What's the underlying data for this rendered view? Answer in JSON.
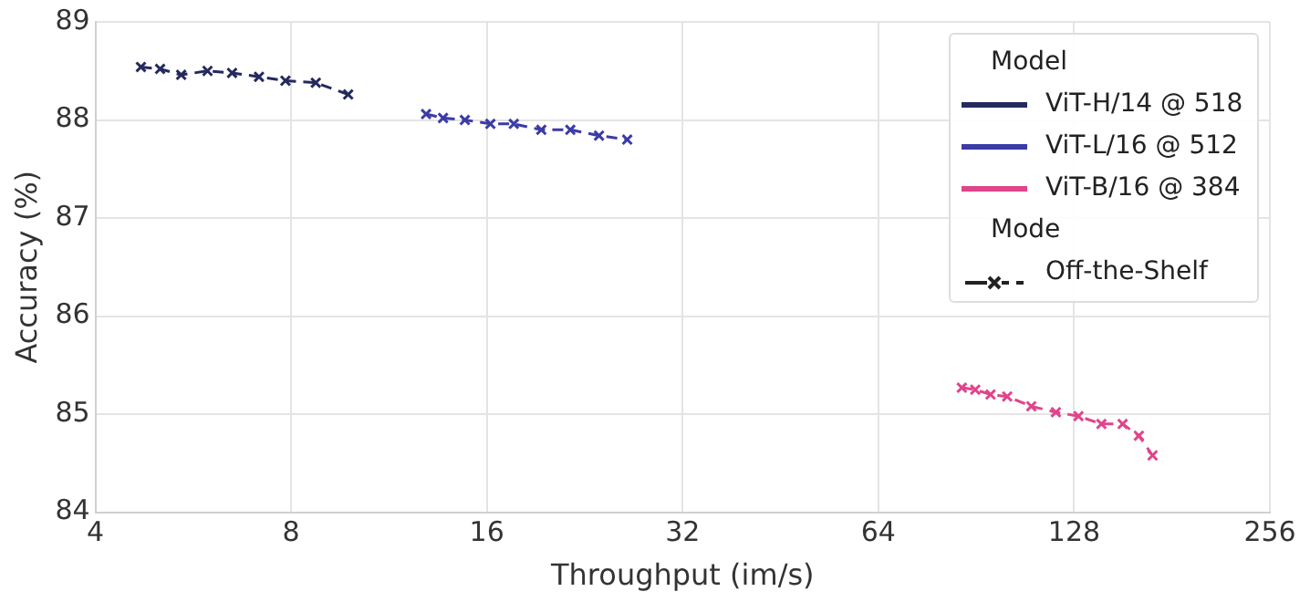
{
  "chart_data": {
    "type": "line",
    "xlabel": "Throughput (im/s)",
    "ylabel": "Accuracy (%)",
    "legend_title": "Model",
    "log": "x",
    "xlim": [
      4,
      256
    ],
    "xticks": [
      4,
      8,
      16,
      32,
      64,
      128,
      256
    ],
    "ylim": [
      84,
      89
    ],
    "yticks": [
      84,
      85,
      86,
      87,
      88,
      89
    ],
    "grid": true,
    "legend": "top right",
    "marker": "cross",
    "line_style": "dashed",
    "series": [
      {
        "name": "ViT-H/14 @ 518",
        "color": "#24295e",
        "x": [
          4.7,
          5.03,
          5.42,
          5.95,
          6.49,
          7.14,
          7.84,
          8.73,
          9.79
        ],
        "values": [
          88.54,
          88.52,
          88.46,
          88.5,
          88.48,
          88.44,
          88.4,
          88.38,
          88.26
        ]
      },
      {
        "name": "ViT-L/16 @ 512",
        "color": "#3b3ba8",
        "x": [
          12.9,
          13.7,
          14.8,
          16.2,
          17.6,
          19.4,
          21.5,
          23.8,
          26.3
        ],
        "values": [
          88.06,
          88.02,
          88.0,
          87.96,
          87.96,
          87.9,
          87.9,
          87.84,
          87.8
        ]
      },
      {
        "name": "ViT-B/16 @ 384",
        "color": "#e0448a",
        "x": [
          86,
          90.2,
          95.2,
          101,
          110,
          120,
          130,
          141,
          152,
          161,
          169
        ],
        "values": [
          85.27,
          85.25,
          85.2,
          85.18,
          85.08,
          85.02,
          84.98,
          84.9,
          84.9,
          84.78,
          84.58
        ]
      }
    ],
    "annotations": [
      "Mode",
      "Off-the-Shelf"
    ]
  }
}
